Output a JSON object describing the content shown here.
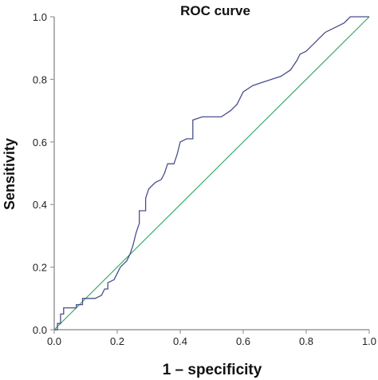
{
  "chart_data": {
    "type": "line",
    "title": "ROC curve",
    "xlabel": "1 – specificity",
    "ylabel": "Sensitivity",
    "xlim": [
      0,
      1
    ],
    "ylim": [
      0,
      1
    ],
    "xticks": [
      "0.0",
      "0.2",
      "0.4",
      "0.6",
      "0.8",
      "1.0"
    ],
    "yticks": [
      "0.0",
      "0.2",
      "0.4",
      "0.6",
      "0.8",
      "1.0"
    ],
    "grid": false,
    "legend": "none",
    "colors": {
      "roc": "#4a4f8c",
      "reference": "#3aaa66",
      "axis": "#999999"
    },
    "series": [
      {
        "points": [
          [
            0.0,
            0.0
          ],
          [
            0.01,
            0.0
          ],
          [
            0.01,
            0.02
          ],
          [
            0.02,
            0.02
          ],
          [
            0.02,
            0.05
          ],
          [
            0.03,
            0.05
          ],
          [
            0.03,
            0.07
          ],
          [
            0.07,
            0.07
          ],
          [
            0.07,
            0.08
          ],
          [
            0.09,
            0.08
          ],
          [
            0.09,
            0.1
          ],
          [
            0.13,
            0.1
          ],
          [
            0.15,
            0.11
          ],
          [
            0.16,
            0.13
          ],
          [
            0.17,
            0.13
          ],
          [
            0.17,
            0.15
          ],
          [
            0.19,
            0.16
          ],
          [
            0.2,
            0.18
          ],
          [
            0.21,
            0.2
          ],
          [
            0.22,
            0.21
          ],
          [
            0.23,
            0.22
          ],
          [
            0.24,
            0.24
          ],
          [
            0.25,
            0.27
          ],
          [
            0.26,
            0.31
          ],
          [
            0.27,
            0.34
          ],
          [
            0.27,
            0.38
          ],
          [
            0.29,
            0.38
          ],
          [
            0.29,
            0.42
          ],
          [
            0.3,
            0.45
          ],
          [
            0.32,
            0.47
          ],
          [
            0.34,
            0.48
          ],
          [
            0.35,
            0.5
          ],
          [
            0.36,
            0.53
          ],
          [
            0.38,
            0.53
          ],
          [
            0.39,
            0.56
          ],
          [
            0.4,
            0.6
          ],
          [
            0.42,
            0.61
          ],
          [
            0.44,
            0.61
          ],
          [
            0.44,
            0.67
          ],
          [
            0.47,
            0.68
          ],
          [
            0.53,
            0.68
          ],
          [
            0.56,
            0.7
          ],
          [
            0.58,
            0.72
          ],
          [
            0.6,
            0.76
          ],
          [
            0.63,
            0.78
          ],
          [
            0.66,
            0.79
          ],
          [
            0.69,
            0.8
          ],
          [
            0.72,
            0.81
          ],
          [
            0.75,
            0.83
          ],
          [
            0.77,
            0.86
          ],
          [
            0.78,
            0.88
          ],
          [
            0.8,
            0.89
          ],
          [
            0.82,
            0.91
          ],
          [
            0.84,
            0.93
          ],
          [
            0.86,
            0.95
          ],
          [
            0.88,
            0.96
          ],
          [
            0.9,
            0.97
          ],
          [
            0.92,
            0.98
          ],
          [
            0.93,
            0.99
          ],
          [
            0.94,
            1.0
          ],
          [
            1.0,
            1.0
          ]
        ]
      },
      {
        "points": [
          [
            0,
            0
          ],
          [
            1,
            1
          ]
        ]
      }
    ]
  }
}
